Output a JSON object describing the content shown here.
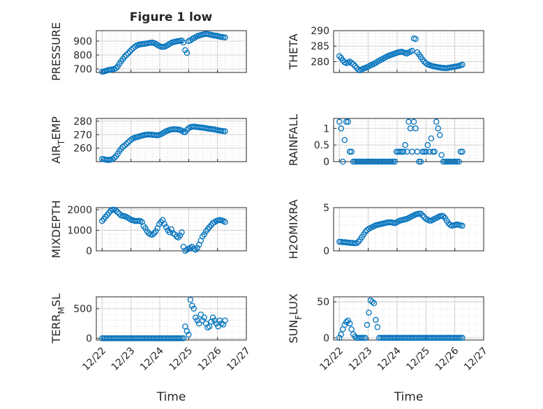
{
  "figure": {
    "title": "Figure 1 low",
    "xlabel": "Time",
    "time_ticks": [
      "12/22",
      "12/23",
      "12/24",
      "12/25",
      "12/26",
      "12/27"
    ],
    "marker_color": "#0072BD",
    "grid_color": "#dcdcdc",
    "axis_color": "#262626"
  },
  "chart_data": [
    {
      "type": "scatter",
      "ylabel": "PRESSURE",
      "ylim": [
        675,
        975
      ],
      "yticks": [
        700,
        800,
        900
      ],
      "x": [
        0.0,
        0.06,
        0.12,
        0.18,
        0.24,
        0.3,
        0.36,
        0.42,
        0.48,
        0.54,
        0.6,
        0.66,
        0.72,
        0.78,
        0.84,
        0.9,
        0.96,
        1.02,
        1.08,
        1.14,
        1.2,
        1.26,
        1.32,
        1.38,
        1.44,
        1.5,
        1.56,
        1.62,
        1.68,
        1.74,
        1.8,
        1.86,
        1.92,
        1.98,
        2.04,
        2.1,
        2.16,
        2.22,
        2.28,
        2.34,
        2.4,
        2.46,
        2.52,
        2.58,
        2.64,
        2.7,
        2.76,
        2.82,
        2.88,
        2.94,
        3.0,
        3.06,
        3.12,
        3.18,
        3.24,
        3.3,
        3.36,
        3.42,
        3.48,
        3.54,
        3.6,
        3.66,
        3.72,
        3.78,
        3.84,
        3.9,
        3.96,
        4.02,
        4.08,
        4.14,
        4.2,
        4.26
      ],
      "y": [
        680,
        682,
        686,
        690,
        693,
        695,
        697,
        700,
        705,
        718,
        738,
        755,
        772,
        788,
        800,
        812,
        825,
        838,
        850,
        860,
        868,
        873,
        876,
        878,
        880,
        882,
        884,
        886,
        888,
        890,
        886,
        880,
        872,
        865,
        860,
        858,
        860,
        865,
        872,
        880,
        888,
        892,
        895,
        898,
        900,
        902,
        904,
        890,
        835,
        815,
        900,
        905,
        915,
        922,
        928,
        935,
        940,
        944,
        947,
        950,
        952,
        950,
        948,
        945,
        942,
        940,
        938,
        935,
        932,
        930,
        928,
        926
      ]
    },
    {
      "type": "scatter",
      "ylabel": "THETA",
      "ylim": [
        276.5,
        290
      ],
      "yticks": [
        280,
        285,
        290
      ],
      "x": [
        0.0,
        0.06,
        0.12,
        0.18,
        0.24,
        0.3,
        0.36,
        0.42,
        0.48,
        0.54,
        0.6,
        0.66,
        0.72,
        0.78,
        0.84,
        0.9,
        0.96,
        1.02,
        1.08,
        1.14,
        1.2,
        1.26,
        1.32,
        1.38,
        1.44,
        1.5,
        1.56,
        1.62,
        1.68,
        1.74,
        1.8,
        1.86,
        1.92,
        1.98,
        2.04,
        2.1,
        2.16,
        2.22,
        2.28,
        2.34,
        2.4,
        2.46,
        2.52,
        2.58,
        2.64,
        2.7,
        2.76,
        2.82,
        2.88,
        2.94,
        3.0,
        3.06,
        3.12,
        3.18,
        3.24,
        3.3,
        3.36,
        3.42,
        3.48,
        3.54,
        3.6,
        3.66,
        3.72,
        3.78,
        3.84,
        3.9,
        3.96,
        4.02,
        4.08,
        4.14,
        4.2,
        4.26
      ],
      "y": [
        281.8,
        281.2,
        280.4,
        279.8,
        279.5,
        279.7,
        280.0,
        279.6,
        279.2,
        278.6,
        278.0,
        277.4,
        277.2,
        277.5,
        277.8,
        278.0,
        278.2,
        278.5,
        278.8,
        279.0,
        279.3,
        279.6,
        280.0,
        280.3,
        280.6,
        280.9,
        281.2,
        281.5,
        281.8,
        282.0,
        282.2,
        282.4,
        282.6,
        282.8,
        283.0,
        283.1,
        283.2,
        283.0,
        282.8,
        282.6,
        282.9,
        283.2,
        283.5,
        287.5,
        287.3,
        283.0,
        282.3,
        281.5,
        280.7,
        280.0,
        279.5,
        279.1,
        278.9,
        278.7,
        278.5,
        278.4,
        278.3,
        278.2,
        278.1,
        278.0,
        278.0,
        277.9,
        277.9,
        278.0,
        278.1,
        278.2,
        278.3,
        278.4,
        278.5,
        278.6,
        278.8,
        279.0
      ]
    },
    {
      "type": "scatter",
      "ylabel": "AIR_TEMP",
      "ylim": [
        250,
        282
      ],
      "yticks": [
        260,
        270,
        280
      ],
      "x": [
        0.0,
        0.06,
        0.12,
        0.18,
        0.24,
        0.3,
        0.36,
        0.42,
        0.48,
        0.54,
        0.6,
        0.66,
        0.72,
        0.78,
        0.84,
        0.9,
        0.96,
        1.02,
        1.08,
        1.14,
        1.2,
        1.26,
        1.32,
        1.38,
        1.44,
        1.5,
        1.56,
        1.62,
        1.68,
        1.74,
        1.8,
        1.86,
        1.92,
        1.98,
        2.04,
        2.1,
        2.16,
        2.22,
        2.28,
        2.34,
        2.4,
        2.46,
        2.52,
        2.58,
        2.64,
        2.7,
        2.76,
        2.82,
        2.88,
        2.94,
        3.0,
        3.06,
        3.12,
        3.18,
        3.24,
        3.3,
        3.36,
        3.42,
        3.48,
        3.54,
        3.6,
        3.66,
        3.72,
        3.78,
        3.84,
        3.9,
        3.96,
        4.02,
        4.08,
        4.14,
        4.2,
        4.26
      ],
      "y": [
        252.0,
        251.8,
        251.5,
        251.3,
        251.2,
        251.5,
        252.0,
        252.8,
        254.0,
        255.8,
        257.8,
        259.5,
        261.0,
        262.0,
        263.0,
        264.2,
        265.5,
        266.5,
        267.2,
        267.8,
        268.2,
        268.5,
        268.9,
        269.2,
        269.6,
        269.9,
        270.0,
        270.1,
        270.0,
        269.9,
        269.8,
        269.6,
        269.5,
        269.8,
        270.3,
        271.0,
        271.8,
        272.5,
        273.0,
        273.5,
        273.8,
        274.0,
        274.0,
        273.9,
        273.8,
        273.5,
        273.0,
        272.0,
        271.8,
        273.5,
        274.8,
        275.5,
        275.8,
        276.0,
        275.8,
        275.6,
        275.4,
        275.3,
        275.2,
        275.0,
        274.8,
        274.5,
        274.3,
        274.2,
        274.0,
        273.8,
        273.5,
        273.2,
        273.0,
        272.8,
        272.6,
        272.5
      ]
    },
    {
      "type": "scatter",
      "ylabel": "RAINFALL",
      "ylim": [
        0,
        1.3
      ],
      "yticks": [
        0,
        0.5,
        1
      ],
      "x": [
        0.0,
        0.06,
        0.12,
        0.18,
        0.24,
        0.3,
        0.36,
        0.42,
        0.48,
        0.54,
        0.6,
        0.66,
        0.72,
        0.78,
        0.84,
        0.9,
        0.96,
        1.02,
        1.08,
        1.14,
        1.2,
        1.26,
        1.32,
        1.38,
        1.44,
        1.5,
        1.56,
        1.62,
        1.68,
        1.74,
        1.8,
        1.86,
        1.92,
        1.98,
        2.04,
        2.1,
        2.16,
        2.22,
        2.28,
        2.34,
        2.4,
        2.46,
        2.52,
        2.58,
        2.64,
        2.7,
        2.76,
        2.82,
        2.88,
        2.94,
        3.0,
        3.06,
        3.12,
        3.18,
        3.24,
        3.3,
        3.36,
        3.42,
        3.48,
        3.54,
        3.6,
        3.66,
        3.72,
        3.78,
        3.84,
        3.9,
        3.96,
        4.02,
        4.08,
        4.14,
        4.2,
        4.26
      ],
      "y": [
        1.2,
        1.0,
        0.0,
        0.65,
        1.2,
        1.2,
        0.3,
        0.3,
        0.0,
        0.0,
        0.0,
        0.0,
        0.0,
        0.0,
        0.0,
        0.0,
        0.0,
        0.0,
        0.0,
        0.0,
        0.0,
        0.0,
        0.0,
        0.0,
        0.0,
        0.0,
        0.0,
        0.0,
        0.0,
        0.0,
        0.0,
        0.0,
        0.0,
        0.3,
        0.3,
        0.3,
        0.3,
        0.3,
        0.5,
        0.3,
        1.2,
        1.0,
        0.3,
        1.2,
        1.0,
        0.3,
        0.0,
        0.0,
        0.3,
        0.3,
        0.3,
        0.5,
        0.3,
        0.7,
        0.3,
        0.3,
        1.2,
        1.0,
        0.8,
        0.2,
        0.0,
        0.0,
        0.0,
        0.0,
        0.0,
        0.0,
        0.0,
        0.0,
        0.0,
        0.0,
        0.3,
        0.3
      ]
    },
    {
      "type": "scatter",
      "ylabel": "MIXDEPTH",
      "ylim": [
        0,
        2100
      ],
      "yticks": [
        0,
        1000,
        2000
      ],
      "x": [
        0.0,
        0.06,
        0.12,
        0.18,
        0.24,
        0.3,
        0.36,
        0.42,
        0.48,
        0.54,
        0.6,
        0.66,
        0.72,
        0.78,
        0.84,
        0.9,
        0.96,
        1.02,
        1.08,
        1.14,
        1.2,
        1.26,
        1.32,
        1.38,
        1.44,
        1.5,
        1.56,
        1.62,
        1.68,
        1.74,
        1.8,
        1.86,
        1.92,
        1.98,
        2.04,
        2.1,
        2.16,
        2.22,
        2.28,
        2.34,
        2.4,
        2.46,
        2.52,
        2.58,
        2.64,
        2.7,
        2.76,
        2.82,
        2.88,
        2.94,
        3.0,
        3.06,
        3.12,
        3.18,
        3.24,
        3.3,
        3.36,
        3.42,
        3.48,
        3.54,
        3.6,
        3.66,
        3.72,
        3.78,
        3.84,
        3.9,
        3.96,
        4.02,
        4.08,
        4.14,
        4.2,
        4.26
      ],
      "y": [
        1450,
        1550,
        1650,
        1750,
        1850,
        1950,
        2000,
        2000,
        1950,
        1880,
        1800,
        1720,
        1700,
        1680,
        1650,
        1600,
        1550,
        1500,
        1480,
        1450,
        1450,
        1460,
        1450,
        1400,
        1200,
        1100,
        950,
        850,
        800,
        780,
        850,
        950,
        1100,
        1300,
        1400,
        1500,
        1300,
        1150,
        1000,
        900,
        1050,
        850,
        800,
        700,
        650,
        750,
        900,
        200,
        0,
        50,
        100,
        150,
        200,
        100,
        50,
        150,
        300,
        500,
        700,
        800,
        950,
        1050,
        1150,
        1250,
        1350,
        1400,
        1450,
        1480,
        1500,
        1480,
        1450,
        1400
      ]
    },
    {
      "type": "scatter",
      "ylabel": "H2OMIXRA",
      "ylim": [
        0,
        5
      ],
      "yticks": [
        0,
        5
      ],
      "x": [
        0.0,
        0.06,
        0.12,
        0.18,
        0.24,
        0.3,
        0.36,
        0.42,
        0.48,
        0.54,
        0.6,
        0.66,
        0.72,
        0.78,
        0.84,
        0.9,
        0.96,
        1.02,
        1.08,
        1.14,
        1.2,
        1.26,
        1.32,
        1.38,
        1.44,
        1.5,
        1.56,
        1.62,
        1.68,
        1.74,
        1.8,
        1.86,
        1.92,
        1.98,
        2.04,
        2.1,
        2.16,
        2.22,
        2.28,
        2.34,
        2.4,
        2.46,
        2.52,
        2.58,
        2.64,
        2.7,
        2.76,
        2.82,
        2.88,
        2.94,
        3.0,
        3.06,
        3.12,
        3.18,
        3.24,
        3.3,
        3.36,
        3.42,
        3.48,
        3.54,
        3.6,
        3.66,
        3.72,
        3.78,
        3.84,
        3.9,
        3.96,
        4.02,
        4.08,
        4.14,
        4.2,
        4.26
      ],
      "y": [
        1.05,
        1.05,
        1.0,
        1.0,
        0.98,
        0.95,
        0.93,
        0.92,
        0.9,
        0.88,
        0.9,
        1.05,
        1.3,
        1.6,
        1.9,
        2.2,
        2.4,
        2.55,
        2.65,
        2.75,
        2.85,
        2.95,
        3.0,
        3.05,
        3.1,
        3.15,
        3.2,
        3.25,
        3.3,
        3.3,
        3.3,
        3.25,
        3.2,
        3.3,
        3.4,
        3.5,
        3.55,
        3.6,
        3.65,
        3.7,
        3.8,
        3.9,
        4.0,
        4.1,
        4.2,
        4.25,
        4.3,
        4.3,
        4.1,
        3.9,
        3.7,
        3.6,
        3.5,
        3.5,
        3.6,
        3.7,
        3.8,
        3.9,
        4.0,
        4.05,
        4.0,
        3.8,
        3.5,
        3.2,
        3.0,
        2.9,
        2.95,
        3.0,
        3.05,
        3.0,
        2.95,
        2.9
      ]
    },
    {
      "type": "scatter",
      "ylabel": "TERR_MSL",
      "ylim": [
        -30,
        700
      ],
      "yticks": [
        0,
        500
      ],
      "x": [
        0.0,
        0.06,
        0.12,
        0.18,
        0.24,
        0.3,
        0.36,
        0.42,
        0.48,
        0.54,
        0.6,
        0.66,
        0.72,
        0.78,
        0.84,
        0.9,
        0.96,
        1.02,
        1.08,
        1.14,
        1.2,
        1.26,
        1.32,
        1.38,
        1.44,
        1.5,
        1.56,
        1.62,
        1.68,
        1.74,
        1.8,
        1.86,
        1.92,
        1.98,
        2.04,
        2.1,
        2.16,
        2.22,
        2.28,
        2.34,
        2.4,
        2.46,
        2.52,
        2.58,
        2.64,
        2.7,
        2.76,
        2.82,
        2.88,
        2.94,
        3.0,
        3.06,
        3.12,
        3.18,
        3.24,
        3.3,
        3.36,
        3.42,
        3.48,
        3.54,
        3.6,
        3.66,
        3.72,
        3.78,
        3.84,
        3.9,
        3.96,
        4.02,
        4.08,
        4.14,
        4.2,
        4.26
      ],
      "y": [
        0,
        0,
        0,
        0,
        0,
        0,
        0,
        0,
        0,
        0,
        0,
        0,
        0,
        0,
        0,
        0,
        0,
        0,
        0,
        0,
        0,
        0,
        0,
        0,
        0,
        0,
        0,
        0,
        0,
        0,
        0,
        0,
        0,
        0,
        0,
        0,
        0,
        0,
        0,
        0,
        0,
        0,
        0,
        0,
        0,
        0,
        0,
        0,
        200,
        120,
        60,
        650,
        550,
        500,
        350,
        300,
        250,
        400,
        300,
        350,
        250,
        180,
        200,
        280,
        350,
        300,
        250,
        200,
        300,
        250,
        230,
        300
      ]
    },
    {
      "type": "scatter",
      "ylabel": "SUN_FLUX",
      "ylim": [
        -3,
        57
      ],
      "yticks": [
        0,
        50
      ],
      "x": [
        0.0,
        0.06,
        0.12,
        0.18,
        0.24,
        0.3,
        0.36,
        0.42,
        0.48,
        0.54,
        0.6,
        0.66,
        0.72,
        0.78,
        0.84,
        0.9,
        0.96,
        1.02,
        1.08,
        1.14,
        1.2,
        1.26,
        1.32,
        1.38,
        1.44,
        1.5,
        1.56,
        1.62,
        1.68,
        1.74,
        1.8,
        1.86,
        1.92,
        1.98,
        2.04,
        2.1,
        2.16,
        2.22,
        2.28,
        2.34,
        2.4,
        2.46,
        2.52,
        2.58,
        2.64,
        2.7,
        2.76,
        2.82,
        2.88,
        2.94,
        3.0,
        3.06,
        3.12,
        3.18,
        3.24,
        3.3,
        3.36,
        3.42,
        3.48,
        3.54,
        3.6,
        3.66,
        3.72,
        3.78,
        3.84,
        3.9,
        3.96,
        4.02,
        4.08,
        4.14,
        4.2,
        4.26
      ],
      "y": [
        0,
        5,
        12,
        18,
        22,
        24,
        20,
        12,
        5,
        2,
        0,
        0,
        0,
        0,
        0,
        0,
        18,
        35,
        52,
        50,
        48,
        25,
        15,
        0,
        0,
        0,
        0,
        0,
        0,
        0,
        0,
        0,
        0,
        0,
        0,
        0,
        0,
        0,
        0,
        0,
        0,
        0,
        0,
        0,
        0,
        0,
        0,
        0,
        0,
        0,
        0,
        0,
        0,
        0,
        0,
        0,
        0,
        0,
        0,
        0,
        0,
        0,
        0,
        0,
        0,
        0,
        0,
        0,
        0,
        0,
        0,
        0
      ]
    }
  ],
  "ylabels": [
    {
      "base": "PRESSURE",
      "sub": "",
      "tail": ""
    },
    {
      "base": "THETA",
      "sub": "",
      "tail": ""
    },
    {
      "base": "AIR",
      "sub": "T",
      "tail": "EMP"
    },
    {
      "base": "RAINFALL",
      "sub": "",
      "tail": ""
    },
    {
      "base": "MIXDEPTH",
      "sub": "",
      "tail": ""
    },
    {
      "base": "H2OMIXRA",
      "sub": "",
      "tail": ""
    },
    {
      "base": "TERR",
      "sub": "M",
      "tail": "SL"
    },
    {
      "base": "SUN",
      "sub": "F",
      "tail": "LUX"
    }
  ]
}
